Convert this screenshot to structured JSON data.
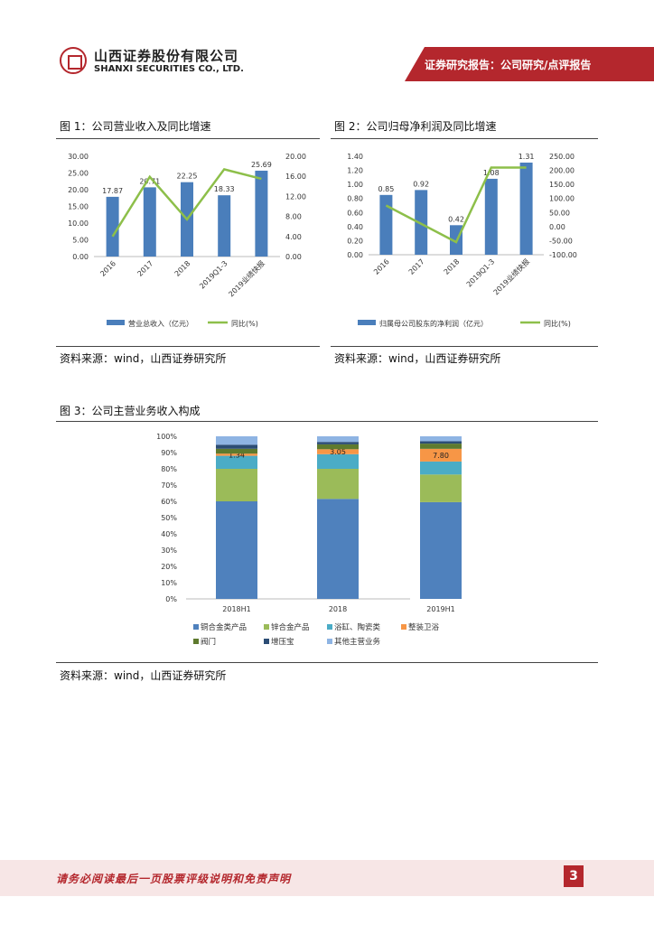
{
  "header": {
    "company_cn": "山西证券股份有限公司",
    "company_en": "SHANXI SECURITIES CO., LTD.",
    "report_type": "证券研究报告：公司研究/点评报告",
    "brand_color": "#b4272d"
  },
  "figure1": {
    "title": "图 1：公司营业收入及同比增速",
    "source": "资料来源：wind，山西证券研究所",
    "chart_data": {
      "type": "bar",
      "categories": [
        "2016",
        "2017",
        "2018",
        "2019Q1-3",
        "2019业绩快报"
      ],
      "series": [
        {
          "name": "营业总收入（亿元）",
          "type": "bar",
          "values": [
            17.87,
            20.71,
            22.25,
            18.33,
            25.69
          ],
          "labels": [
            "17.87",
            "20.71",
            "22.25",
            "18.33",
            "25.69"
          ],
          "color": "#4a7ebb"
        },
        {
          "name": "同比(%)",
          "type": "line",
          "axis": "right",
          "values": [
            4.0,
            15.9,
            7.4,
            17.4,
            15.5
          ],
          "color": "#8dbf4a"
        }
      ],
      "ylim": [
        0,
        30
      ],
      "yticks": [
        "30.00",
        "25.00",
        "20.00",
        "15.00",
        "10.00",
        "5.00",
        "0.00"
      ],
      "y2lim": [
        0,
        20
      ],
      "y2ticks": [
        "20.00",
        "16.00",
        "12.00",
        "8.00",
        "4.00",
        "0.00"
      ],
      "legend": "bottom"
    }
  },
  "figure2": {
    "title": "图 2：公司归母净利润及同比增速",
    "source": "资料来源：wind，山西证券研究所",
    "chart_data": {
      "type": "bar",
      "categories": [
        "2016",
        "2017",
        "2018",
        "2019Q1-3",
        "2019业绩快报"
      ],
      "series": [
        {
          "name": "归属母公司股东的净利润（亿元）",
          "type": "bar",
          "values": [
            0.85,
            0.92,
            0.42,
            1.08,
            1.31
          ],
          "labels": [
            "0.85",
            "0.92",
            "0.42",
            "1.08",
            "1.31"
          ],
          "color": "#4a7ebb"
        },
        {
          "name": "同比(%)",
          "type": "line",
          "axis": "right",
          "values": [
            75,
            10,
            -55,
            210,
            210
          ],
          "color": "#8dbf4a"
        }
      ],
      "ylim": [
        0,
        1.4
      ],
      "yticks": [
        "1.40",
        "1.20",
        "1.00",
        "0.80",
        "0.60",
        "0.40",
        "0.20",
        "0.00"
      ],
      "y2lim": [
        -100,
        250
      ],
      "y2ticks": [
        "250.00",
        "200.00",
        "150.00",
        "100.00",
        "50.00",
        "0.00",
        "-50.00",
        "-100.00"
      ],
      "legend": "bottom"
    }
  },
  "figure3": {
    "title": "图 3：公司主营业务收入构成",
    "source": "资料来源：wind，山西证券研究所",
    "chart_data": {
      "type": "bar",
      "stacked": true,
      "percent": true,
      "categories": [
        "2018H1",
        "2018",
        "2019H1"
      ],
      "series": [
        {
          "name": "铜合金类产品",
          "values": [
            60,
            61.5,
            59.5
          ],
          "color": "#4f81bd"
        },
        {
          "name": "锌合金产品",
          "values": [
            20,
            18.5,
            17
          ],
          "color": "#9bbb59"
        },
        {
          "name": "浴缸、陶瓷类",
          "values": [
            8,
            9,
            8
          ],
          "color": "#4bacc6"
        },
        {
          "name": "整装卫浴",
          "values": [
            1.34,
            3.05,
            7.8
          ],
          "color": "#f79646",
          "labels": [
            "1.34",
            "3.05",
            "7.80"
          ]
        },
        {
          "name": "阀门",
          "values": [
            3,
            3,
            3.2
          ],
          "color": "#5e7a2e"
        },
        {
          "name": "增压宝",
          "values": [
            2.5,
            1.5,
            1.5
          ],
          "color": "#2c4d75"
        },
        {
          "name": "其他主营业务",
          "values": [
            5.16,
            3.45,
            3.0
          ],
          "color": "#8eb4e3"
        }
      ],
      "ylim": [
        0,
        100
      ],
      "yticks": [
        "100%",
        "90%",
        "80%",
        "70%",
        "60%",
        "50%",
        "40%",
        "30%",
        "20%",
        "10%",
        "0%"
      ],
      "legend": "bottom"
    }
  },
  "footer": {
    "disclaimer": "请务必阅读最后一页股票评级说明和免责声明",
    "page_number": "3"
  }
}
